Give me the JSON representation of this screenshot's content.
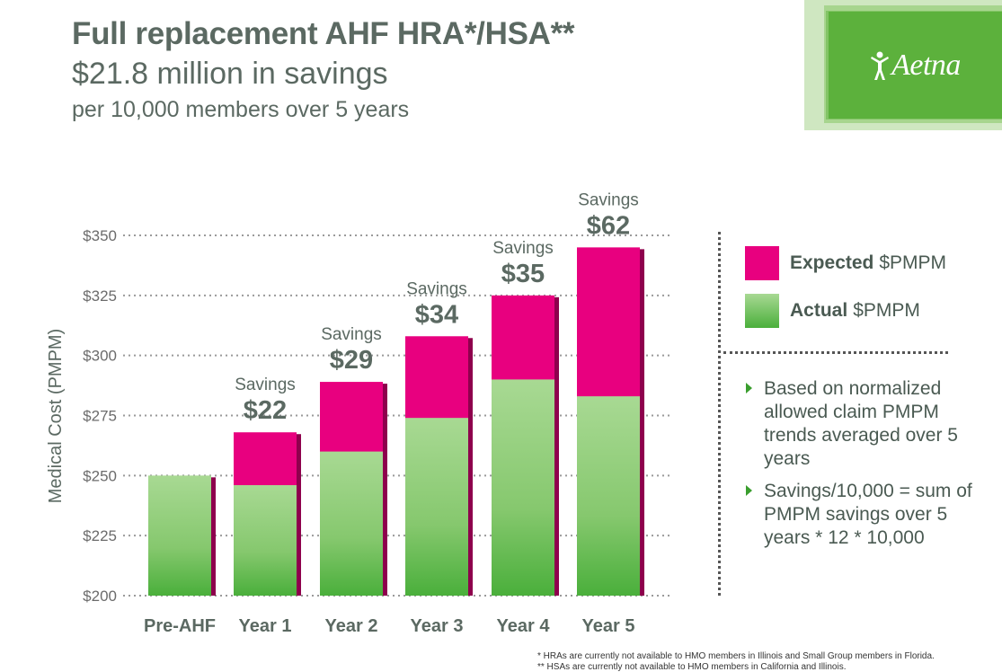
{
  "header": {
    "title": "Full replacement AHF HRA*/HSA**",
    "subtitle": "$21.8 million in savings",
    "subsubtitle": "per 10,000 members over 5 years"
  },
  "logo": {
    "text": "Aetna",
    "icon": "aetna-figure-icon"
  },
  "colors": {
    "expected": "#e8007f",
    "actual_top": "#a3d68f",
    "actual_bottom": "#4aaf3b",
    "shadow": "#8e004d",
    "accent": "#5cb13c"
  },
  "legend": {
    "items": [
      {
        "bold": "Expected",
        "rest": "$PMPM"
      },
      {
        "bold": "Actual",
        "rest": "$PMPM"
      }
    ]
  },
  "notes": [
    "Based on normalized allowed claim PMPM trends averaged over 5 years",
    "Savings/10,000 = sum of PMPM savings over 5 years * 12 * 10,000"
  ],
  "footnotes": [
    "*  HRAs are currently not available to HMO members in Illinois and Small Group members in Florida.",
    "**  HSAs are currently not available to HMO members in California and Illinois."
  ],
  "chart_data": {
    "type": "bar",
    "ylabel": "Medical Cost (PMPM)",
    "ylim": [
      200,
      350
    ],
    "yticks": [
      200,
      225,
      250,
      275,
      300,
      325,
      350
    ],
    "ytick_labels": [
      "$200",
      "$225",
      "$250",
      "$275",
      "$300",
      "$325",
      "$350"
    ],
    "grid": true,
    "categories": [
      "Pre-AHF",
      "Year 1",
      "Year 2",
      "Year 3",
      "Year 4",
      "Year 5"
    ],
    "series": [
      {
        "name": "Expected $PMPM",
        "values": [
          250,
          268,
          289,
          308,
          325,
          345
        ]
      },
      {
        "name": "Actual $PMPM",
        "values": [
          250,
          246,
          260,
          274,
          290,
          283
        ]
      }
    ],
    "annotations": [
      {
        "category": "Year 1",
        "label": "Savings",
        "value": "$22"
      },
      {
        "category": "Year 2",
        "label": "Savings",
        "value": "$29"
      },
      {
        "category": "Year 3",
        "label": "Savings",
        "value": "$34"
      },
      {
        "category": "Year 4",
        "label": "Savings",
        "value": "$35"
      },
      {
        "category": "Year 5",
        "label": "Savings",
        "value": "$62"
      }
    ]
  }
}
